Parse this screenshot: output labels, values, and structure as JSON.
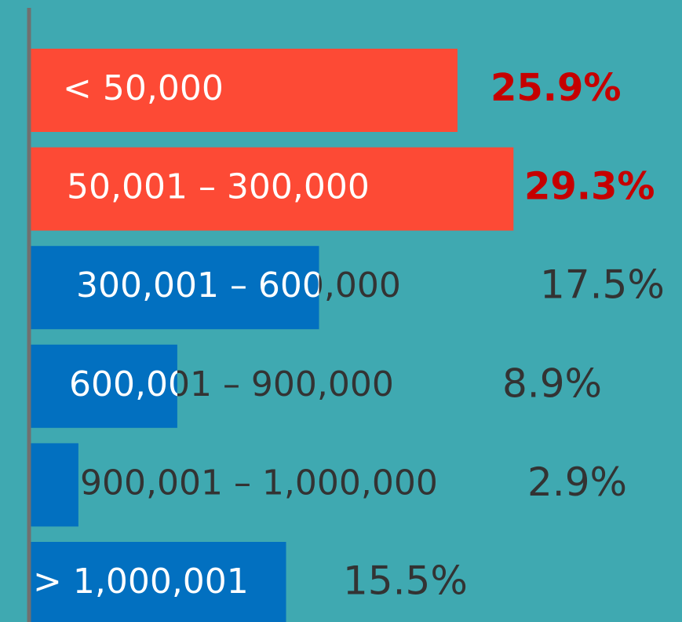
{
  "chart_data": {
    "type": "bar",
    "orientation": "horizontal",
    "categories": [
      "< 50,000",
      "50,001 – 300,000",
      "300,001 – 600,000",
      "600,001 – 900,000",
      "900,001 – 1,000,000",
      "> 1,000,001"
    ],
    "values": [
      25.9,
      29.3,
      17.5,
      8.9,
      2.9,
      15.5
    ],
    "value_labels": [
      "25.9%",
      "29.3%",
      "17.5%",
      "8.9%",
      "2.9%",
      "15.5%"
    ],
    "colors": [
      "#fd4a35",
      "#fd4a35",
      "#0270c0",
      "#0270c0",
      "#0270c0",
      "#0270c0"
    ],
    "value_label_colors": [
      "#c50000",
      "#c50000",
      "#333333",
      "#333333",
      "#333333",
      "#333333"
    ]
  }
}
